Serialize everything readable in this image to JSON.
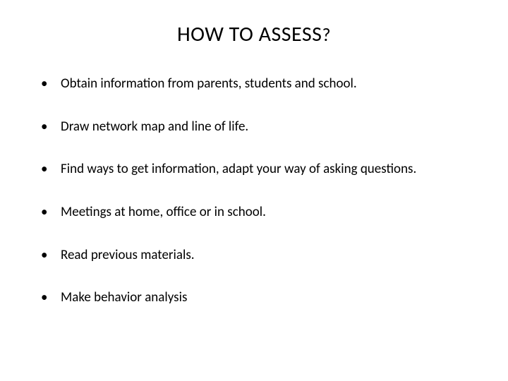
{
  "slide": {
    "title_main": "HOW TO ASSESS",
    "title_suffix": "?",
    "bullets": [
      "Obtain information from parents, students and school.",
      "Draw network map and line of life.",
      "Find ways to get information, adapt your way of asking questions.",
      "Meetings at home, office or in school.",
      "Read previous materials.",
      "Make behavior analysis"
    ],
    "colors": {
      "background": "#ffffff",
      "text": "#000000"
    },
    "typography": {
      "title_fontsize_main": 30,
      "title_fontsize_suffix": 26,
      "body_fontsize": 19,
      "font_family": "Segoe UI"
    }
  }
}
